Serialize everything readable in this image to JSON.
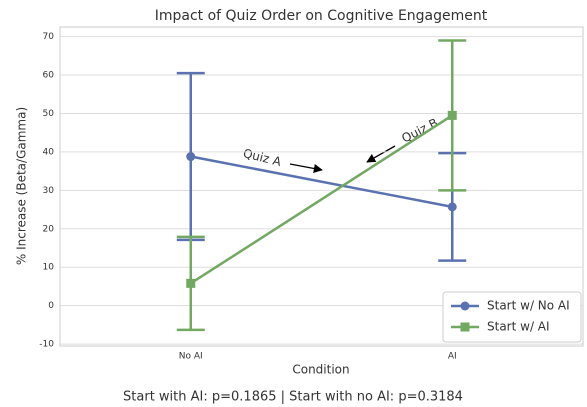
{
  "chart_data": {
    "type": "line",
    "title": "Impact of Quiz Order on Cognitive Engagement",
    "x_label": "Condition",
    "y_label": "% Increase (Beta/Gamma)",
    "footer": "Start with AI: p=0.1865 | Start with no AI: p=0.3184",
    "categories": [
      "No AI",
      "AI"
    ],
    "series": [
      {
        "name": "Start w/ No AI",
        "color": "#5a72b0",
        "marker": "circle",
        "values": [
          38.8,
          25.7
        ],
        "errors": [
          21.7,
          14.0
        ]
      },
      {
        "name": "Start w/ AI",
        "color": "#72a862",
        "marker": "square",
        "values": [
          5.8,
          49.5
        ],
        "errors": [
          12.1,
          19.5
        ]
      }
    ],
    "annotations": [
      "Quiz A",
      "Quiz B"
    ],
    "ylim": [
      -10.5,
      72.5
    ],
    "yticks": [
      -10,
      0,
      10,
      20,
      30,
      40,
      50,
      60,
      70
    ],
    "grid": true,
    "legend": "lower right"
  }
}
